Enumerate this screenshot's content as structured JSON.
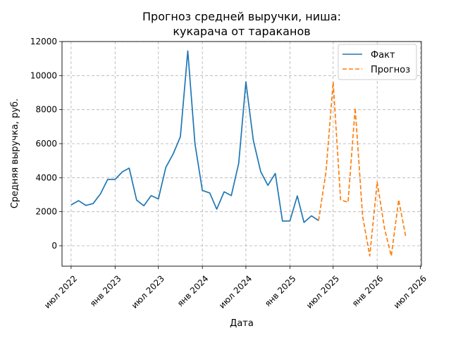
{
  "chart_data": {
    "type": "line",
    "title": [
      "Прогноз средней выручки, ниша:",
      "кукарача от тараканов"
    ],
    "xlabel": "Дата",
    "ylabel": "Средняя выручка, руб.",
    "ylim": [
      -1200,
      12000
    ],
    "yticks": [
      0,
      2000,
      4000,
      6000,
      8000,
      10000,
      12000
    ],
    "xlim": [
      "2022-05-24",
      "2026-07-05"
    ],
    "xticks": [
      {
        "date": "2022-07-01",
        "label": "июл 2022"
      },
      {
        "date": "2023-01-01",
        "label": "янв 2023"
      },
      {
        "date": "2023-07-01",
        "label": "июл 2023"
      },
      {
        "date": "2024-01-01",
        "label": "янв 2024"
      },
      {
        "date": "2024-07-01",
        "label": "июл 2024"
      },
      {
        "date": "2025-01-01",
        "label": "янв 2025"
      },
      {
        "date": "2025-07-01",
        "label": "июл 2025"
      },
      {
        "date": "2026-01-01",
        "label": "янв 2026"
      },
      {
        "date": "2026-07-01",
        "label": "июл 2026"
      }
    ],
    "grid": true,
    "legend_position": "top-right",
    "series": [
      {
        "name": "Факт",
        "color": "#1f77b4",
        "style": "solid",
        "x": [
          "2022-07-01",
          "2022-08-01",
          "2022-09-01",
          "2022-10-01",
          "2022-11-01",
          "2022-12-01",
          "2023-01-01",
          "2023-02-01",
          "2023-03-01",
          "2023-04-01",
          "2023-05-01",
          "2023-06-01",
          "2023-07-01",
          "2023-08-01",
          "2023-09-01",
          "2023-10-01",
          "2023-11-01",
          "2023-12-01",
          "2024-01-01",
          "2024-02-01",
          "2024-03-01",
          "2024-04-01",
          "2024-05-01",
          "2024-06-01",
          "2024-07-01",
          "2024-08-01",
          "2024-09-01",
          "2024-10-01",
          "2024-11-01",
          "2024-12-01",
          "2025-01-01",
          "2025-02-01",
          "2025-03-01",
          "2025-04-01",
          "2025-05-01"
        ],
        "y": [
          2400,
          2650,
          2370,
          2480,
          3050,
          3900,
          3900,
          4350,
          4560,
          2680,
          2350,
          2950,
          2750,
          4600,
          5400,
          6400,
          11450,
          6000,
          3250,
          3100,
          2150,
          3170,
          2950,
          4850,
          9630,
          6200,
          4350,
          3550,
          4250,
          1450,
          1460,
          2930,
          1370,
          1760,
          1480
        ]
      },
      {
        "name": "Прогноз",
        "color": "#ff7f0e",
        "style": "dashed",
        "x": [
          "2025-05-01",
          "2025-06-01",
          "2025-07-01",
          "2025-08-01",
          "2025-09-01",
          "2025-10-01",
          "2025-11-01",
          "2025-12-01",
          "2026-01-01",
          "2026-02-01",
          "2026-03-01",
          "2026-04-01",
          "2026-05-01",
          "2026-06-01"
        ],
        "y": [
          1480,
          4350,
          9620,
          2700,
          2550,
          8100,
          1750,
          -600,
          3750,
          1000,
          -600,
          2700,
          500,
          null
        ]
      }
    ]
  }
}
